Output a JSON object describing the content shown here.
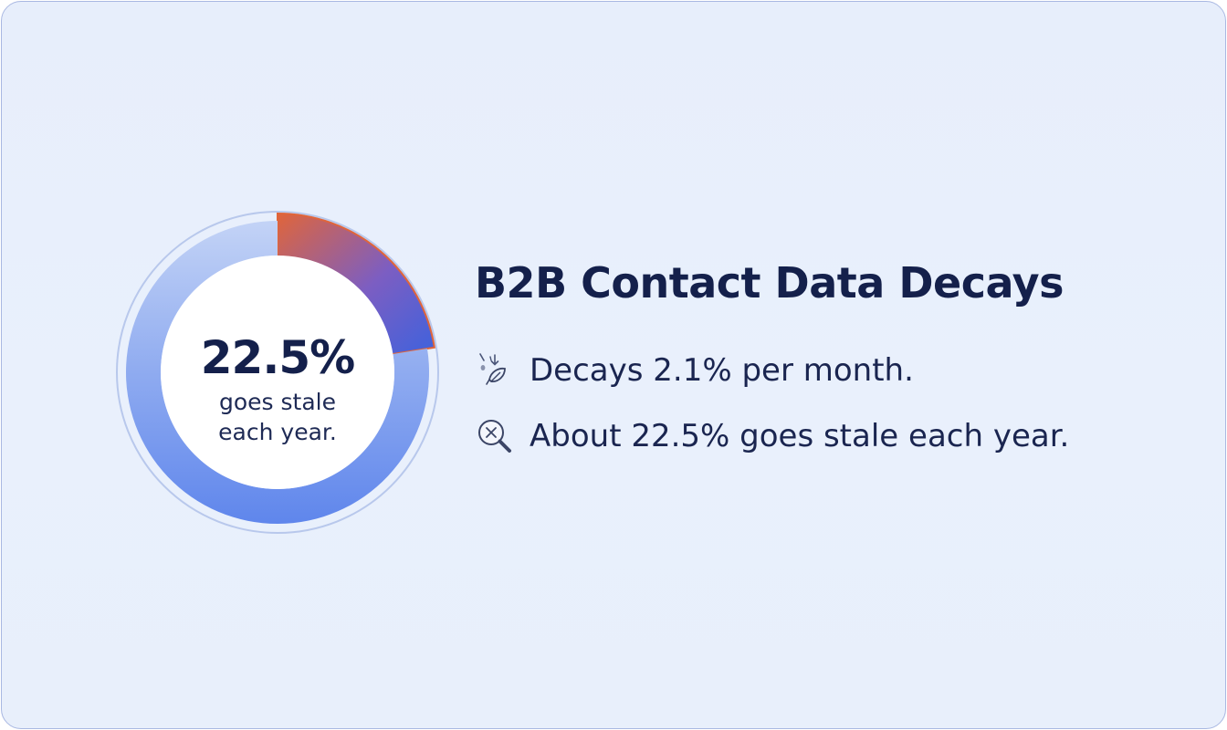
{
  "card": {
    "title": "B2B Contact Data Decays",
    "bullets": [
      {
        "icon": "falling-leaf-icon",
        "text": "Decays 2.1% per month."
      },
      {
        "icon": "magnifier-x-icon",
        "text": "About 22.5% goes stale each year."
      }
    ]
  },
  "chart_data": {
    "type": "donut",
    "center_value": "22.5%",
    "center_caption": "goes stale each year.",
    "slices": [
      {
        "label": "stale",
        "value": 22.5,
        "color": "#e0653a"
      },
      {
        "label": "",
        "value": 77.5,
        "color": "#3f6fe8"
      }
    ],
    "colors": {
      "accent_orange": "#e0653a",
      "accent_blue": "#3f6fe8",
      "track": "#dde6f8",
      "title": "#14204b"
    }
  }
}
